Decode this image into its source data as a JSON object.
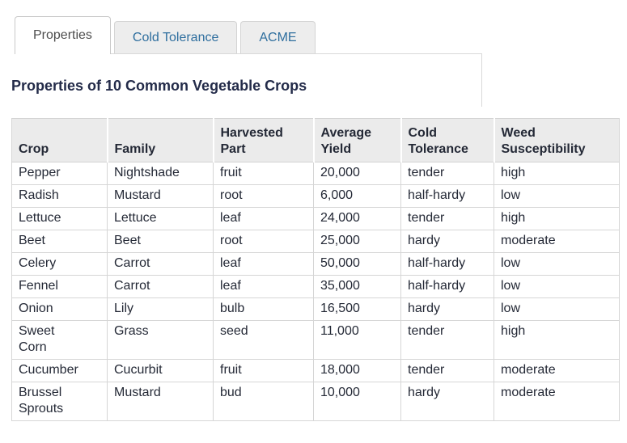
{
  "tabs": [
    {
      "label": "Properties",
      "active": true
    },
    {
      "label": "Cold Tolerance",
      "active": false
    },
    {
      "label": "ACME",
      "active": false
    }
  ],
  "panel": {
    "heading": "Properties of 10 Common Vegetable Crops"
  },
  "table": {
    "columns": [
      "Crop",
      "Family",
      "Harvested\nPart",
      "Average\nYield",
      "Cold\nTolerance",
      "Weed\nSusceptibility"
    ],
    "rows": [
      [
        "Pepper",
        "Nightshade",
        "fruit",
        "20,000",
        "tender",
        "high"
      ],
      [
        "Radish",
        "Mustard",
        "root",
        "6,000",
        "half-hardy",
        "low"
      ],
      [
        "Lettuce",
        "Lettuce",
        "leaf",
        "24,000",
        "tender",
        "high"
      ],
      [
        "Beet",
        "Beet",
        "root",
        "25,000",
        "hardy",
        "moderate"
      ],
      [
        "Celery",
        "Carrot",
        "leaf",
        "50,000",
        "half-hardy",
        "low"
      ],
      [
        "Fennel",
        "Carrot",
        "leaf",
        "35,000",
        "half-hardy",
        "low"
      ],
      [
        "Onion",
        "Lily",
        "bulb",
        "16,500",
        "hardy",
        "low"
      ],
      [
        "Sweet\nCorn",
        "Grass",
        "seed",
        "11,000",
        "tender",
        "high"
      ],
      [
        "Cucumber",
        "Cucurbit",
        "fruit",
        "18,000",
        "tender",
        "moderate"
      ],
      [
        "Brussel\nSprouts",
        "Mustard",
        "bud",
        "10,000",
        "hardy",
        "moderate"
      ]
    ]
  },
  "colors": {
    "inactive_tab_text": "#2e6e9e",
    "active_tab_text": "#4d4d4d",
    "inactive_tab_bg": "#ededed",
    "heading_text": "#232b49",
    "table_text": "#242936",
    "header_bg": "#ebebeb",
    "table_border": "#d6d6d6",
    "panel_border": "#d9d9d9"
  }
}
